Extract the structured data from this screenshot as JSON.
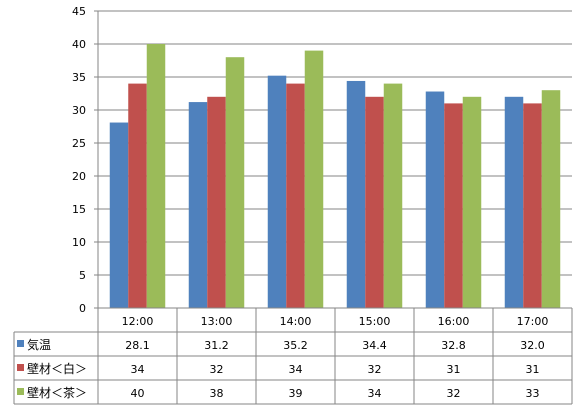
{
  "chart_data": {
    "type": "bar",
    "categories": [
      "12:00",
      "13:00",
      "14:00",
      "15:00",
      "16:00",
      "17:00"
    ],
    "series": [
      {
        "name": "気温",
        "color": "#4F81BD",
        "values": [
          28.1,
          31.2,
          35.2,
          34.4,
          32.8,
          32.0
        ],
        "display": [
          "28.1",
          "31.2",
          "35.2",
          "34.4",
          "32.8",
          "32.0"
        ]
      },
      {
        "name": "壁材＜白＞",
        "color": "#C0504D",
        "values": [
          34,
          32,
          34,
          32,
          31,
          31
        ],
        "display": [
          "34",
          "32",
          "34",
          "32",
          "31",
          "31"
        ]
      },
      {
        "name": "壁材＜茶＞",
        "color": "#9BBB59",
        "values": [
          40,
          38,
          39,
          34,
          32,
          33
        ],
        "display": [
          "40",
          "38",
          "39",
          "34",
          "32",
          "33"
        ]
      }
    ],
    "ylim": [
      0,
      45
    ],
    "yticks": [
      0,
      5,
      10,
      15,
      20,
      25,
      30,
      35,
      40,
      45
    ],
    "grid": true,
    "legend": "data-table"
  }
}
